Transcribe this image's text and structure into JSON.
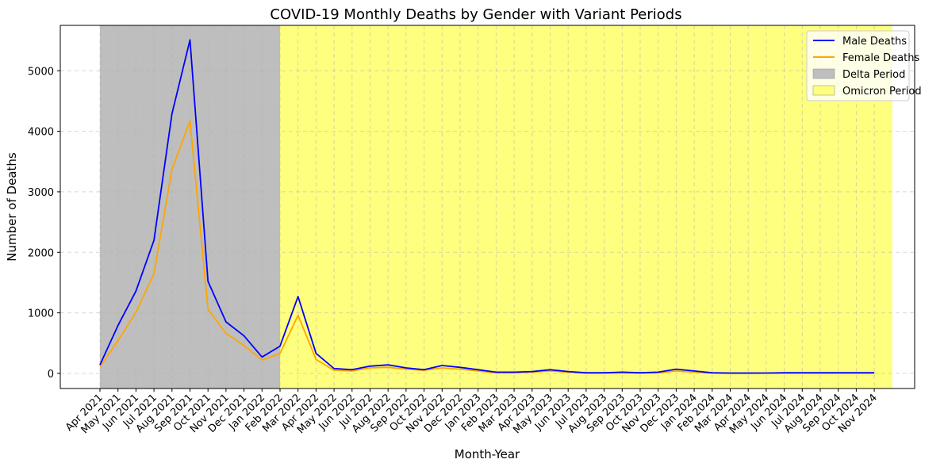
{
  "chart_data": {
    "type": "line",
    "title": "COVID-19 Monthly Deaths by Gender with Variant Periods",
    "xlabel": "Month-Year",
    "ylabel": "Number of Deaths",
    "ylim": [
      -250,
      5750
    ],
    "yticks": [
      0,
      1000,
      2000,
      3000,
      4000,
      5000
    ],
    "grid": true,
    "legend_position": "top-right",
    "categories": [
      "Apr 2021",
      "May 2021",
      "Jun 2021",
      "Jul 2021",
      "Aug 2021",
      "Sep 2021",
      "Oct 2021",
      "Nov 2021",
      "Dec 2021",
      "Jan 2022",
      "Feb 2022",
      "Mar 2022",
      "Apr 2022",
      "May 2022",
      "Jun 2022",
      "Jul 2022",
      "Aug 2022",
      "Sep 2022",
      "Oct 2022",
      "Nov 2022",
      "Dec 2022",
      "Jan 2023",
      "Feb 2023",
      "Mar 2023",
      "Apr 2023",
      "May 2023",
      "Jun 2023",
      "Jul 2023",
      "Aug 2023",
      "Sep 2023",
      "Oct 2023",
      "Nov 2023",
      "Dec 2023",
      "Jan 2024",
      "Feb 2024",
      "Mar 2024",
      "Apr 2024",
      "May 2024",
      "Jun 2024",
      "Jul 2024",
      "Aug 2024",
      "Sep 2024",
      "Oct 2024",
      "Nov 2024"
    ],
    "series": [
      {
        "name": "Male Deaths",
        "color": "#0000ff",
        "values": [
          140,
          790,
          1360,
          2200,
          4290,
          5510,
          1520,
          850,
          620,
          270,
          450,
          1270,
          330,
          80,
          60,
          120,
          140,
          90,
          60,
          130,
          100,
          60,
          20,
          20,
          30,
          60,
          30,
          10,
          10,
          20,
          10,
          20,
          70,
          40,
          10,
          5,
          5,
          5,
          10,
          10,
          10,
          10,
          10,
          10
        ]
      },
      {
        "name": "Female Deaths",
        "color": "#ffa500",
        "values": [
          110,
          540,
          1010,
          1650,
          3370,
          4170,
          1060,
          660,
          460,
          220,
          330,
          960,
          230,
          50,
          40,
          90,
          100,
          70,
          50,
          90,
          70,
          40,
          10,
          10,
          20,
          40,
          20,
          5,
          5,
          10,
          5,
          10,
          40,
          20,
          5,
          0,
          0,
          5,
          5,
          5,
          5,
          5,
          5,
          5
        ]
      }
    ],
    "periods": [
      {
        "name": "Delta Period",
        "start": "Apr 2021",
        "end": "Feb 2022",
        "color": "#bebebe"
      },
      {
        "name": "Omicron Period",
        "start": "Feb 2022",
        "end": "Dec 2024",
        "color": "#ffff7f"
      }
    ]
  }
}
